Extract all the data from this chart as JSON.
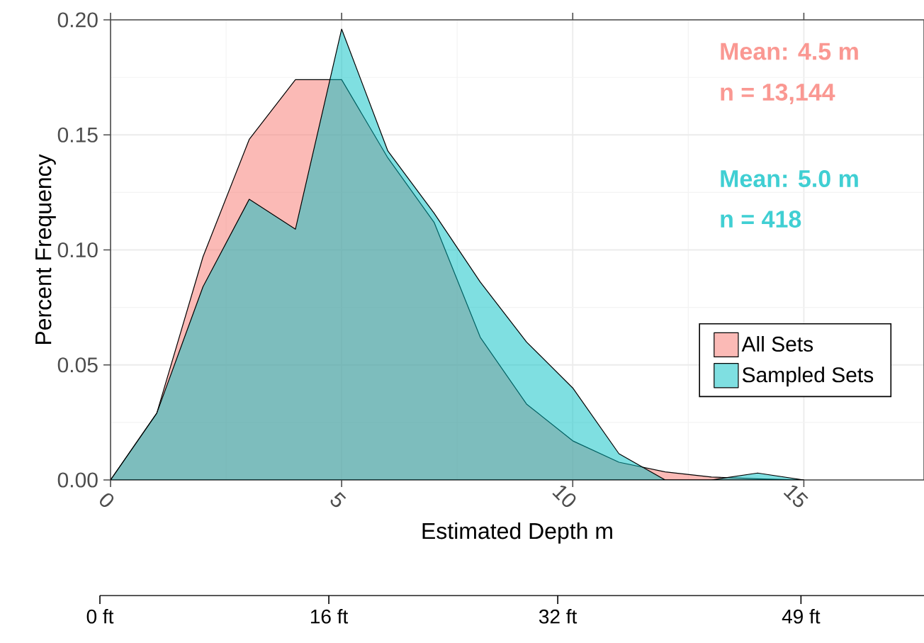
{
  "chart_data": {
    "type": "area",
    "xlabel": "Estimated Depth m",
    "ylabel": "Percent Frequency",
    "x": [
      0,
      1,
      2,
      3,
      4,
      5,
      6,
      7,
      8,
      9,
      10,
      11,
      12,
      13,
      14,
      15
    ],
    "series": [
      {
        "name": "All Sets",
        "color": "#f8766d",
        "values": [
          0,
          0.029,
          0.097,
          0.148,
          0.174,
          0.174,
          0.14,
          0.112,
          0.062,
          0.033,
          0.017,
          0.0077,
          0.0035,
          0.0013,
          0.0005,
          0
        ]
      },
      {
        "name": "Sampled Sets",
        "color": "#00bfc4",
        "values": [
          0,
          0.029,
          0.084,
          0.122,
          0.109,
          0.196,
          0.143,
          0.116,
          0.086,
          0.06,
          0.04,
          0.0114,
          0,
          0,
          0.003,
          0
        ]
      }
    ],
    "xlim": [
      0,
      17.6
    ],
    "ylim": [
      0,
      0.2
    ],
    "xticks": [
      0,
      5,
      10,
      15
    ],
    "yticks": [
      {
        "value": 0,
        "label": "0.00"
      },
      {
        "value": 0.05,
        "label": "0.05"
      },
      {
        "value": 0.1,
        "label": "0.10"
      },
      {
        "value": 0.15,
        "label": "0.15"
      },
      {
        "value": 0.2,
        "label": "0.20"
      }
    ],
    "x2lim": [
      0,
      57.6
    ],
    "x2ticks": [
      {
        "value": 0,
        "label": "0 ft"
      },
      {
        "value": 16,
        "label": "16 ft"
      },
      {
        "value": 32,
        "label": "32 ft"
      },
      {
        "value": 49,
        "label": "49 ft"
      }
    ],
    "annotations": [
      "Mean: 4.5 m",
      "n = 13,144",
      "Mean: 5.0 m",
      "n = 418"
    ],
    "grid": true,
    "legend": "bottom right"
  }
}
